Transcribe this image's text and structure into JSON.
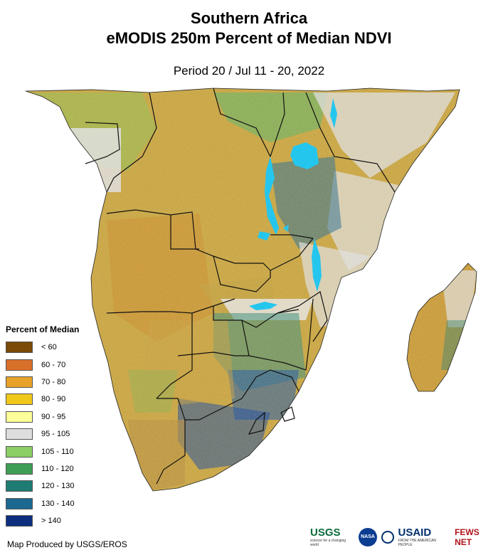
{
  "header": {
    "title_line1": "Southern Africa",
    "title_line2": "eMODIS 250m Percent of Median NDVI",
    "period": "Period 20 / Jul 11 - 20, 2022"
  },
  "legend": {
    "title": "Percent of Median",
    "items": [
      {
        "label": "< 60",
        "color": "#7a4a06"
      },
      {
        "label": "60 - 70",
        "color": "#d9702a"
      },
      {
        "label": "70 - 80",
        "color": "#e8a22a"
      },
      {
        "label": "80 - 90",
        "color": "#f0c81a"
      },
      {
        "label": "90 - 95",
        "color": "#fdfd99"
      },
      {
        "label": "95 - 105",
        "color": "#dedede"
      },
      {
        "label": "105 - 110",
        "color": "#8ccf66"
      },
      {
        "label": "110 - 120",
        "color": "#3e9e55"
      },
      {
        "label": "120 - 130",
        "color": "#1f7c73"
      },
      {
        "label": "130 - 140",
        "color": "#1c6890"
      },
      {
        "label": "> 140",
        "color": "#0d2f7e"
      }
    ]
  },
  "credit": "Map Produced by USGS/EROS",
  "logos": {
    "usgs": "USGS",
    "usgs_tagline": "science for a changing world",
    "nasa": "NASA",
    "usaid": "USAID",
    "usaid_tagline": "FROM THE AMERICAN PEOPLE",
    "fews": "FEWS NET"
  },
  "map_colors": {
    "land_base": "#c8a440",
    "water": "#25c6ee",
    "borders": "#111111"
  }
}
